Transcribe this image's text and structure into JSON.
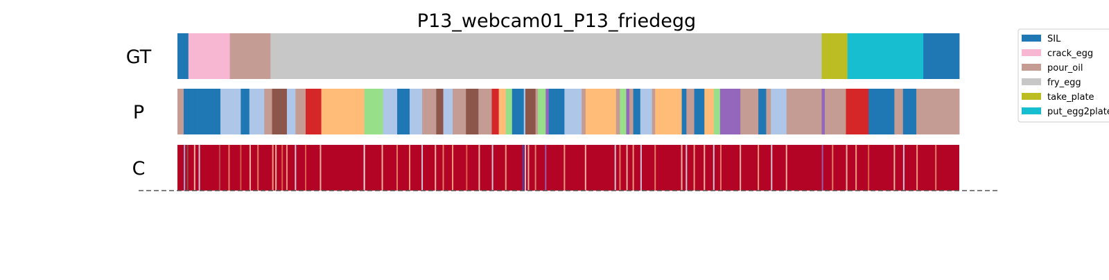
{
  "chart_data": {
    "type": "segmentation_timeline",
    "title": "P13_webcam01_P13_friedegg",
    "x_range": [
      0,
      1000
    ],
    "rows": [
      {
        "label": "GT",
        "segments": [
          {
            "start": 0,
            "end": 14,
            "color": "#1f77b4"
          },
          {
            "start": 14,
            "end": 67,
            "color": "#f7b6d2"
          },
          {
            "start": 67,
            "end": 119,
            "color": "#c49c94"
          },
          {
            "start": 119,
            "end": 824,
            "color": "#c7c7c7"
          },
          {
            "start": 824,
            "end": 857,
            "color": "#bcbd22"
          },
          {
            "start": 857,
            "end": 954,
            "color": "#17becf"
          },
          {
            "start": 954,
            "end": 1000,
            "color": "#1f77b4"
          }
        ]
      },
      {
        "label": "P",
        "segments": [
          {
            "start": 0,
            "end": 8,
            "color": "#c49c94"
          },
          {
            "start": 8,
            "end": 22,
            "color": "#1f77b4"
          },
          {
            "start": 22,
            "end": 55,
            "color": "#1f77b4"
          },
          {
            "start": 55,
            "end": 81,
            "color": "#aec7e8"
          },
          {
            "start": 81,
            "end": 92,
            "color": "#1f77b4"
          },
          {
            "start": 92,
            "end": 111,
            "color": "#aec7e8"
          },
          {
            "start": 111,
            "end": 121,
            "color": "#c49c94"
          },
          {
            "start": 121,
            "end": 140,
            "color": "#8c564b"
          },
          {
            "start": 140,
            "end": 151,
            "color": "#aec7e8"
          },
          {
            "start": 151,
            "end": 164,
            "color": "#c49c94"
          },
          {
            "start": 164,
            "end": 184,
            "color": "#d62728"
          },
          {
            "start": 184,
            "end": 239,
            "color": "#ffbb78"
          },
          {
            "start": 239,
            "end": 263,
            "color": "#98df8a"
          },
          {
            "start": 263,
            "end": 281,
            "color": "#aec7e8"
          },
          {
            "start": 281,
            "end": 297,
            "color": "#1f77b4"
          },
          {
            "start": 297,
            "end": 313,
            "color": "#aec7e8"
          },
          {
            "start": 313,
            "end": 331,
            "color": "#c49c94"
          },
          {
            "start": 331,
            "end": 340,
            "color": "#8c564b"
          },
          {
            "start": 340,
            "end": 352,
            "color": "#aec7e8"
          },
          {
            "start": 352,
            "end": 369,
            "color": "#c49c94"
          },
          {
            "start": 369,
            "end": 385,
            "color": "#8c564b"
          },
          {
            "start": 385,
            "end": 402,
            "color": "#c49c94"
          },
          {
            "start": 402,
            "end": 411,
            "color": "#d62728"
          },
          {
            "start": 411,
            "end": 420,
            "color": "#ffbb78"
          },
          {
            "start": 420,
            "end": 428,
            "color": "#98df8a"
          },
          {
            "start": 428,
            "end": 443,
            "color": "#1f77b4"
          },
          {
            "start": 443,
            "end": 445,
            "color": "#aec7e8"
          },
          {
            "start": 445,
            "end": 458,
            "color": "#8c564b"
          },
          {
            "start": 458,
            "end": 461,
            "color": "#c49c94"
          },
          {
            "start": 461,
            "end": 471,
            "color": "#98df8a"
          },
          {
            "start": 471,
            "end": 475,
            "color": "#9467bd"
          },
          {
            "start": 475,
            "end": 495,
            "color": "#1f77b4"
          },
          {
            "start": 495,
            "end": 517,
            "color": "#aec7e8"
          },
          {
            "start": 517,
            "end": 522,
            "color": "#c49c94"
          },
          {
            "start": 522,
            "end": 561,
            "color": "#ffbb78"
          },
          {
            "start": 561,
            "end": 566,
            "color": "#c49c94"
          },
          {
            "start": 566,
            "end": 574,
            "color": "#98df8a"
          },
          {
            "start": 574,
            "end": 578,
            "color": "#9467bd"
          },
          {
            "start": 578,
            "end": 583,
            "color": "#c49c94"
          },
          {
            "start": 583,
            "end": 592,
            "color": "#1f77b4"
          },
          {
            "start": 592,
            "end": 607,
            "color": "#aec7e8"
          },
          {
            "start": 607,
            "end": 611,
            "color": "#c49c94"
          },
          {
            "start": 611,
            "end": 645,
            "color": "#ffbb78"
          },
          {
            "start": 645,
            "end": 651,
            "color": "#1f77b4"
          },
          {
            "start": 651,
            "end": 661,
            "color": "#c49c94"
          },
          {
            "start": 661,
            "end": 674,
            "color": "#1f77b4"
          },
          {
            "start": 674,
            "end": 686,
            "color": "#ffbb78"
          },
          {
            "start": 686,
            "end": 694,
            "color": "#98df8a"
          },
          {
            "start": 694,
            "end": 720,
            "color": "#9467bd"
          },
          {
            "start": 720,
            "end": 743,
            "color": "#c49c94"
          },
          {
            "start": 743,
            "end": 753,
            "color": "#1f77b4"
          },
          {
            "start": 753,
            "end": 759,
            "color": "#c49c94"
          },
          {
            "start": 759,
            "end": 779,
            "color": "#aec7e8"
          },
          {
            "start": 779,
            "end": 824,
            "color": "#c49c94"
          },
          {
            "start": 824,
            "end": 828,
            "color": "#9467bd"
          },
          {
            "start": 828,
            "end": 855,
            "color": "#c49c94"
          },
          {
            "start": 855,
            "end": 884,
            "color": "#d62728"
          },
          {
            "start": 884,
            "end": 917,
            "color": "#1f77b4"
          },
          {
            "start": 917,
            "end": 928,
            "color": "#c49c94"
          },
          {
            "start": 928,
            "end": 945,
            "color": "#1f77b4"
          },
          {
            "start": 945,
            "end": 1000,
            "color": "#c49c94"
          }
        ]
      },
      {
        "label": "C",
        "base_color": "#b40426",
        "stripes": [
          {
            "at": 9,
            "color": "#9ebbe5"
          },
          {
            "at": 13,
            "color": "#8c564b"
          },
          {
            "at": 22,
            "color": "#f4c4ae"
          },
          {
            "at": 28,
            "color": "#cfdaea"
          },
          {
            "at": 54,
            "color": "#c44e52"
          },
          {
            "at": 66,
            "color": "#ec8b6b"
          },
          {
            "at": 81,
            "color": "#d6604d"
          },
          {
            "at": 93,
            "color": "#f4c4ae"
          },
          {
            "at": 103,
            "color": "#e68a6e"
          },
          {
            "at": 122,
            "color": "#f7a889"
          },
          {
            "at": 126,
            "color": "#f4c4ae"
          },
          {
            "at": 134,
            "color": "#e26952"
          },
          {
            "at": 140,
            "color": "#f7a889"
          },
          {
            "at": 151,
            "color": "#cfdaea"
          },
          {
            "at": 164,
            "color": "#e26952"
          },
          {
            "at": 183,
            "color": "#f4c4ae"
          },
          {
            "at": 239,
            "color": "#f2f2f2"
          },
          {
            "at": 262,
            "color": "#f4c4ae"
          },
          {
            "at": 281,
            "color": "#e68a6e"
          },
          {
            "at": 297,
            "color": "#f7a889"
          },
          {
            "at": 313,
            "color": "#cfdaea"
          },
          {
            "at": 330,
            "color": "#f4c4ae"
          },
          {
            "at": 340,
            "color": "#e68a6e"
          },
          {
            "at": 352,
            "color": "#f7a889"
          },
          {
            "at": 370,
            "color": "#e26952"
          },
          {
            "at": 386,
            "color": "#f4c4ae"
          },
          {
            "at": 403,
            "color": "#cfdaea"
          },
          {
            "at": 420,
            "color": "#f7a889"
          },
          {
            "at": 442,
            "color": "#3b4cc0"
          },
          {
            "at": 445,
            "color": "#cfdaea"
          },
          {
            "at": 449,
            "color": "#f4c4ae"
          },
          {
            "at": 458,
            "color": "#e68a6e"
          },
          {
            "at": 471,
            "color": "#9467bd"
          },
          {
            "at": 495,
            "color": "#f7a889"
          },
          {
            "at": 522,
            "color": "#f4c4ae"
          },
          {
            "at": 560,
            "color": "#cfdaea"
          },
          {
            "at": 566,
            "color": "#e68a6e"
          },
          {
            "at": 575,
            "color": "#f4c4ae"
          },
          {
            "at": 583,
            "color": "#f7a889"
          },
          {
            "at": 593,
            "color": "#cfdaea"
          },
          {
            "at": 611,
            "color": "#e68a6e"
          },
          {
            "at": 645,
            "color": "#f4c4ae"
          },
          {
            "at": 651,
            "color": "#cfdaea"
          },
          {
            "at": 661,
            "color": "#f7a889"
          },
          {
            "at": 674,
            "color": "#f4c4ae"
          },
          {
            "at": 686,
            "color": "#cfdaea"
          },
          {
            "at": 695,
            "color": "#e68a6e"
          },
          {
            "at": 720,
            "color": "#f4c4ae"
          },
          {
            "at": 743,
            "color": "#f7a889"
          },
          {
            "at": 760,
            "color": "#cfdaea"
          },
          {
            "at": 779,
            "color": "#f4c4ae"
          },
          {
            "at": 825,
            "color": "#9467bd"
          },
          {
            "at": 838,
            "color": "#e68a6e"
          },
          {
            "at": 856,
            "color": "#f4c4ae"
          },
          {
            "at": 868,
            "color": "#f7a889"
          },
          {
            "at": 884,
            "color": "#e26952"
          },
          {
            "at": 917,
            "color": "#f4c4ae"
          },
          {
            "at": 929,
            "color": "#cfdaea"
          },
          {
            "at": 946,
            "color": "#f7a889"
          },
          {
            "at": 970,
            "color": "#e68a6e"
          }
        ]
      }
    ],
    "legend": {
      "placement": "top-right",
      "entries": [
        {
          "label": "SIL",
          "color": "#1f77b4"
        },
        {
          "label": "crack_egg",
          "color": "#f7b6d2"
        },
        {
          "label": "pour_oil",
          "color": "#c49c94"
        },
        {
          "label": "fry_egg",
          "color": "#c7c7c7"
        },
        {
          "label": "take_plate",
          "color": "#bcbd22"
        },
        {
          "label": "put_egg2plate",
          "color": "#17becf"
        }
      ]
    },
    "baseline": {
      "style": "dashed",
      "color": "#555555"
    }
  }
}
